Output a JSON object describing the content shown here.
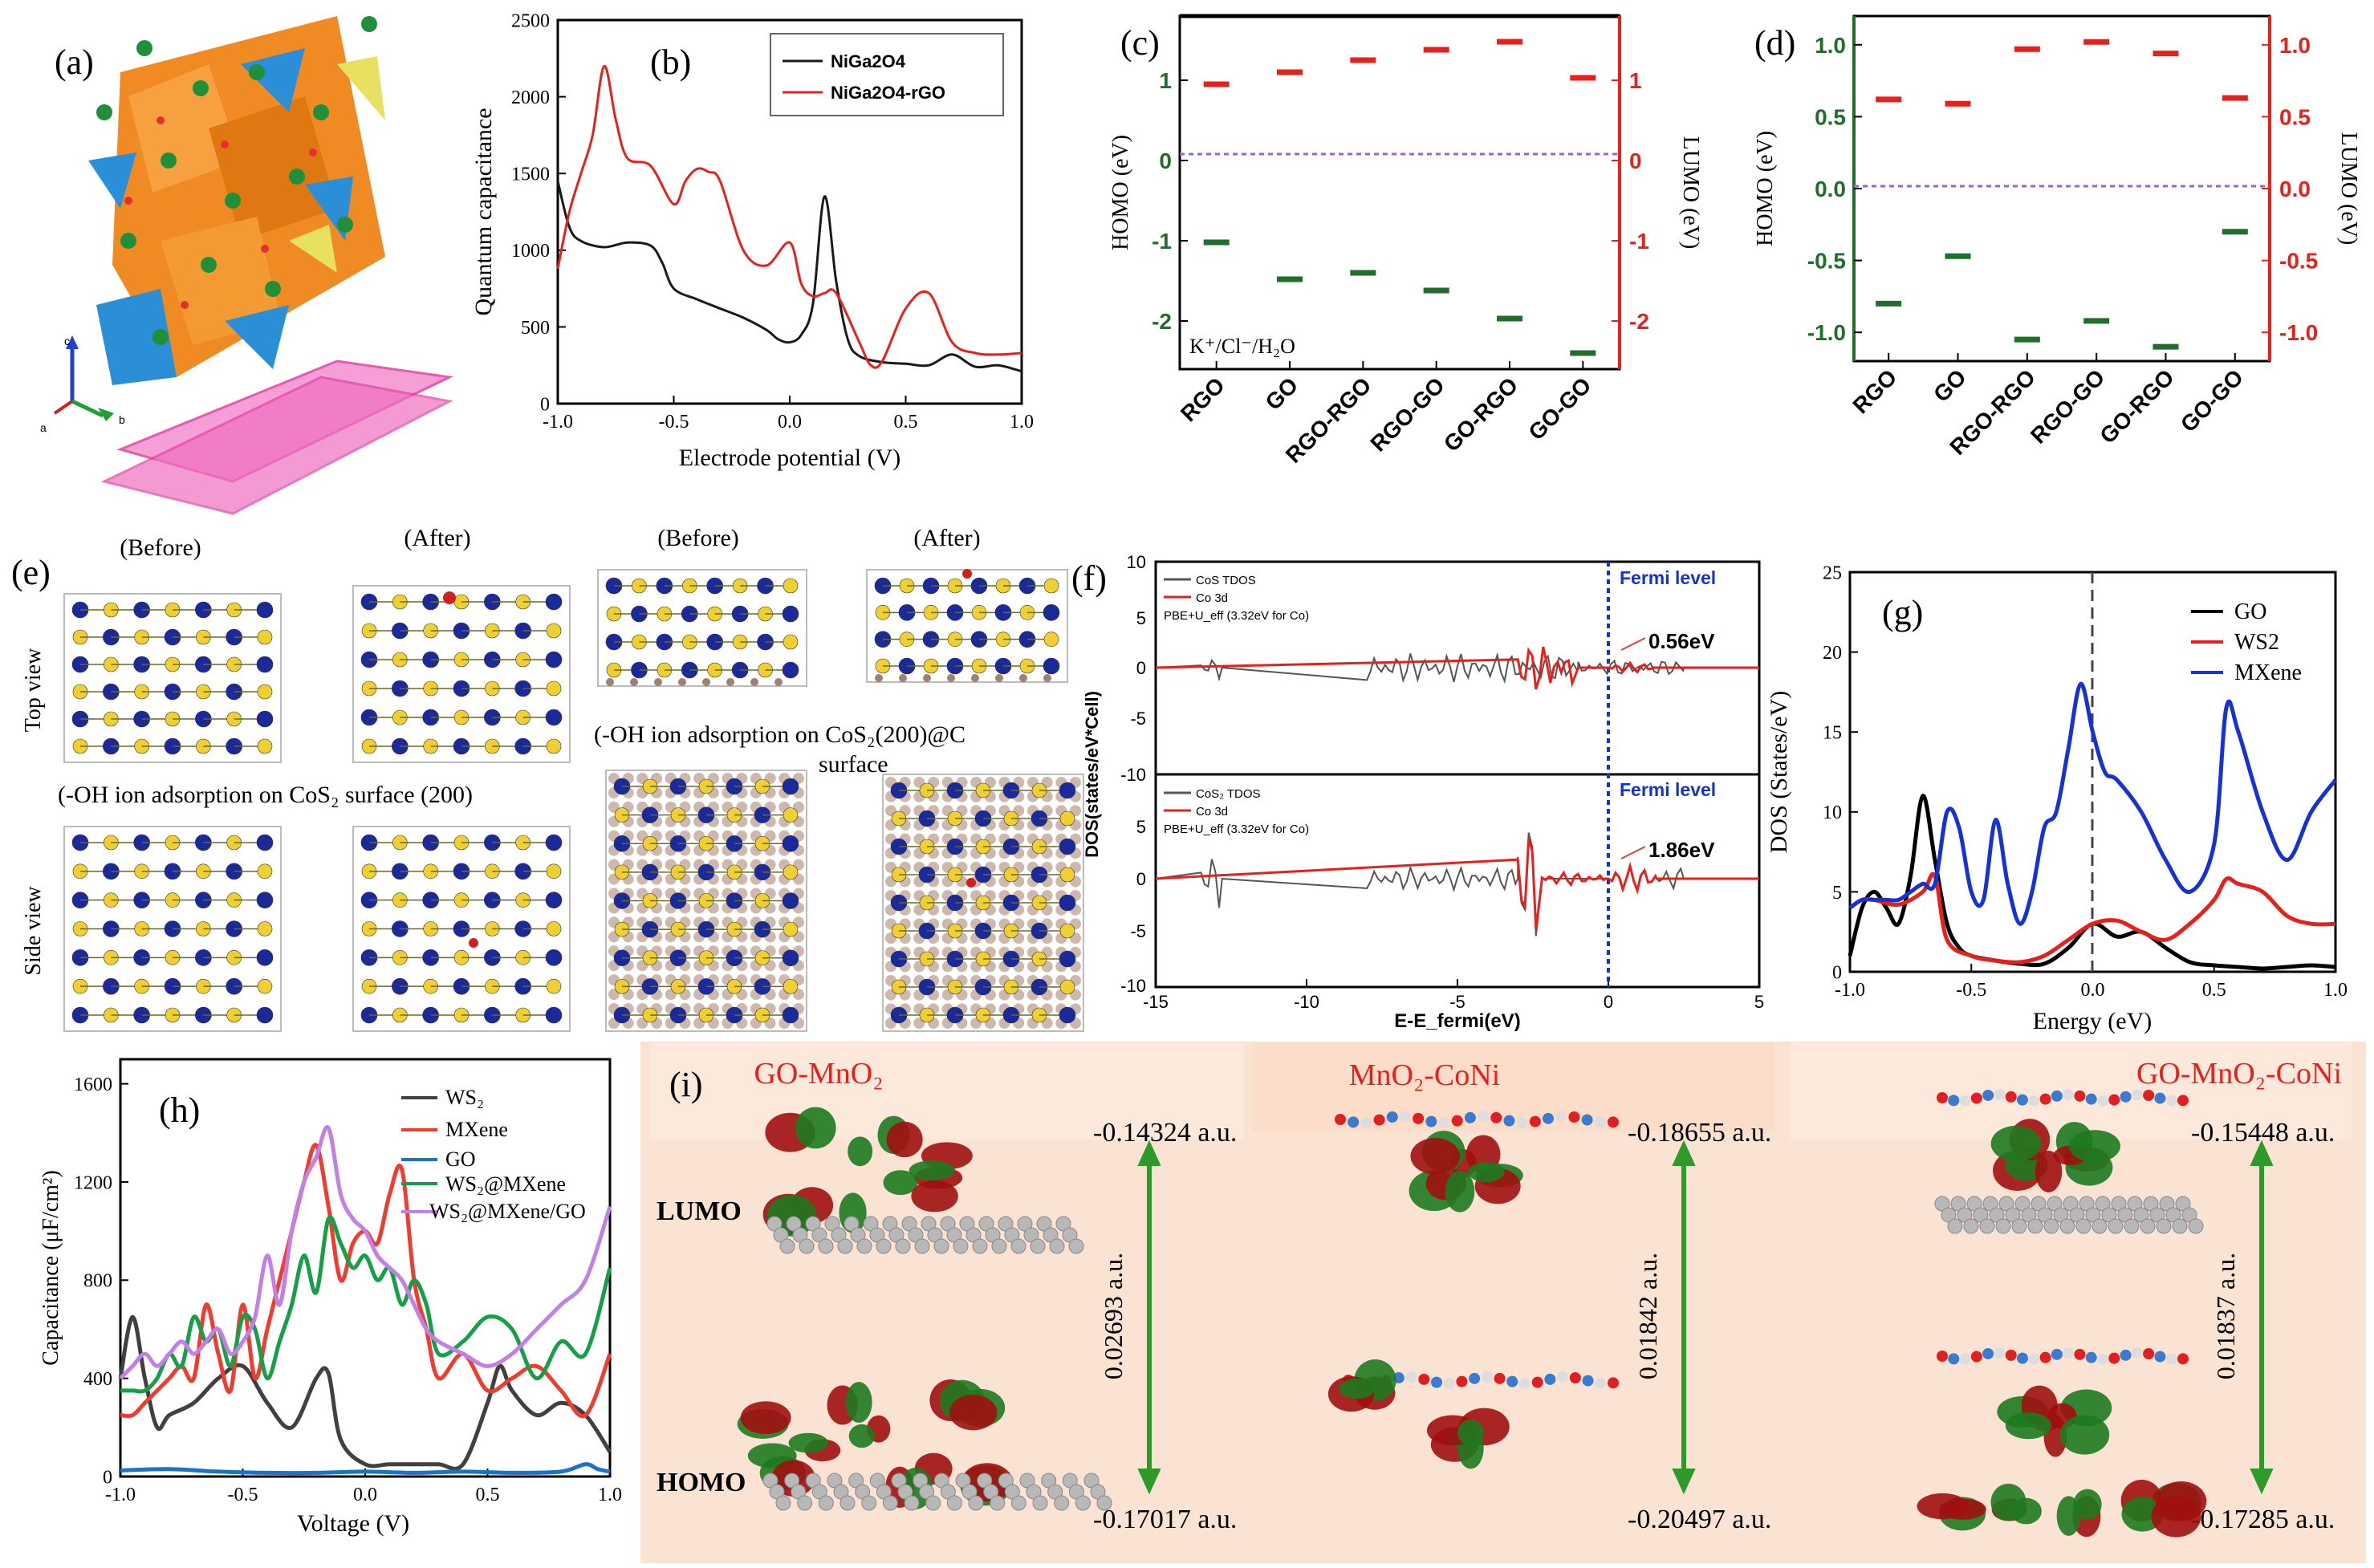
{
  "panel_labels": [
    "(a)",
    "(b)",
    "(c)",
    "(d)",
    "(e)",
    "(f)",
    "(g)",
    "(h)",
    "(i)"
  ],
  "panel_a": {
    "axes": [
      "c",
      "a",
      "b"
    ]
  },
  "chart_data": [
    {
      "panel": "(b)",
      "type": "line",
      "xlabel": "Electrode potential (V)",
      "ylabel": "Quantum capacitance",
      "xlim": [
        -1.0,
        1.0
      ],
      "ylim": [
        0,
        2500
      ],
      "xticks": [
        "-1.0",
        "-0.5",
        "0.0",
        "0.5",
        "1.0"
      ],
      "yticks": [
        "0",
        "500",
        "1000",
        "1500",
        "2000",
        "2500"
      ],
      "legend_position": "top-right",
      "series": [
        {
          "name": "NiGa2O4",
          "color": "#1a1a1a",
          "x": [
            -1.0,
            -0.95,
            -0.9,
            -0.8,
            -0.7,
            -0.6,
            -0.55,
            -0.5,
            -0.4,
            -0.3,
            -0.2,
            -0.1,
            -0.05,
            0.0,
            0.05,
            0.1,
            0.15,
            0.2,
            0.25,
            0.3,
            0.4,
            0.5,
            0.6,
            0.7,
            0.8,
            0.9,
            1.0
          ],
          "y": [
            1450,
            1150,
            1060,
            1020,
            1050,
            1030,
            920,
            750,
            680,
            620,
            560,
            480,
            420,
            400,
            450,
            650,
            1350,
            800,
            420,
            310,
            270,
            260,
            250,
            320,
            240,
            250,
            210
          ]
        },
        {
          "name": "NiGa2O4-rGO",
          "color": "#e8201c",
          "x": [
            -1.0,
            -0.95,
            -0.9,
            -0.85,
            -0.8,
            -0.75,
            -0.7,
            -0.6,
            -0.5,
            -0.45,
            -0.4,
            -0.35,
            -0.3,
            -0.2,
            -0.1,
            0.0,
            0.05,
            0.1,
            0.15,
            0.2,
            0.3,
            0.35,
            0.4,
            0.5,
            0.6,
            0.7,
            0.8,
            0.9,
            1.0
          ],
          "y": [
            880,
            1250,
            1500,
            1750,
            2200,
            1850,
            1600,
            1550,
            1300,
            1450,
            1530,
            1510,
            1450,
            1000,
            900,
            1050,
            780,
            700,
            720,
            720,
            400,
            250,
            280,
            620,
            720,
            400,
            330,
            320,
            330
          ]
        }
      ]
    },
    {
      "panel": "(c)",
      "type": "scatter",
      "ylabel": "HOMO (eV)",
      "y2label": "LUMO (eV)",
      "ylim": [
        -2.6,
        1.8
      ],
      "yticks": [
        "1",
        "0",
        "-1",
        "-2"
      ],
      "y2ticks": [
        "1",
        "0",
        "-1",
        "-2"
      ],
      "categories": [
        "RGO",
        "GO",
        "RGO-RGO",
        "RGO-GO",
        "GO-RGO",
        "GO-GO"
      ],
      "annotation": "K⁺/Cl⁻/H₂O",
      "series": [
        {
          "name": "LUMO",
          "color": "#e8201c",
          "values": [
            0.95,
            1.1,
            1.25,
            1.38,
            1.48,
            1.03
          ]
        },
        {
          "name": "HOMO",
          "color": "#1f6e2a",
          "values": [
            -1.02,
            -1.48,
            -1.4,
            -1.62,
            -1.97,
            -2.4
          ]
        }
      ]
    },
    {
      "panel": "(d)",
      "type": "scatter",
      "ylabel": "HOMO (eV)",
      "y2label": "LUMO (eV)",
      "ylim": [
        -1.2,
        1.2
      ],
      "yticks": [
        "1.0",
        "0.5",
        "0.0",
        "-0.5",
        "-1.0"
      ],
      "y2ticks": [
        "1.0",
        "0.5",
        "0.0",
        "-0.5",
        "-1.0"
      ],
      "categories": [
        "RGO",
        "GO",
        "RGO-RGO",
        "RGO-GO",
        "GO-RGO",
        "GO-GO"
      ],
      "series": [
        {
          "name": "LUMO",
          "color": "#e8201c",
          "values": [
            0.62,
            0.59,
            0.97,
            1.02,
            0.94,
            0.63
          ]
        },
        {
          "name": "HOMO",
          "color": "#1f6e2a",
          "values": [
            -0.8,
            -0.47,
            -1.05,
            -0.92,
            -1.1,
            -0.3
          ]
        }
      ]
    },
    {
      "panel": "(f)",
      "type": "line",
      "xlabel": "E-E_fermi(eV)",
      "ylabel": "DOS(states/eV*Cell)",
      "xlim": [
        -15,
        5
      ],
      "xticks": [
        "-15",
        "-10",
        "-5",
        "0",
        "5"
      ],
      "top_yticks": [
        "10",
        "5",
        "0",
        "-5"
      ],
      "bottom_yticks": [
        "-10",
        "10",
        "5",
        "0",
        "-5",
        "-10"
      ],
      "fermi_label": "Fermi level",
      "subplots": [
        {
          "legend": [
            "CoS TDOS",
            "Co 3d"
          ],
          "method": "PBE+U_eff (3.32eV for Co)",
          "gap_label": "0.56eV"
        },
        {
          "legend": [
            "CoS₂ TDOS",
            "Co 3d"
          ],
          "method": "PBE+U_eff (3.32eV for Co)",
          "gap_label": "1.86eV"
        }
      ]
    },
    {
      "panel": "(g)",
      "type": "line",
      "xlabel": "Energy  (eV)",
      "ylabel": "DOS (States/eV)",
      "xlim": [
        -1.0,
        1.0
      ],
      "ylim": [
        0,
        25
      ],
      "xticks": [
        "-1.0",
        "-0.5",
        "0.0",
        "0.5",
        "1.0"
      ],
      "yticks": [
        "0",
        "5",
        "10",
        "15",
        "20",
        "25"
      ],
      "legend_position": "top-right",
      "series": [
        {
          "name": "GO",
          "color": "#000000",
          "x": [
            -1.0,
            -0.95,
            -0.9,
            -0.85,
            -0.8,
            -0.75,
            -0.7,
            -0.65,
            -0.6,
            -0.55,
            -0.5,
            -0.4,
            -0.3,
            -0.2,
            -0.1,
            0.0,
            0.1,
            0.2,
            0.3,
            0.4,
            0.5,
            0.6,
            0.7,
            0.8,
            0.9,
            1.0
          ],
          "y": [
            1,
            4,
            5,
            4,
            3,
            6,
            11,
            7,
            3,
            1.5,
            1,
            0.7,
            0.5,
            0.5,
            1.5,
            3,
            2.2,
            2.5,
            1.5,
            0.6,
            0.4,
            0.3,
            0.2,
            0.3,
            0.4,
            0.3
          ]
        },
        {
          "name": "WS2",
          "color": "#e8201c",
          "x": [
            -1.0,
            -0.95,
            -0.9,
            -0.8,
            -0.7,
            -0.65,
            -0.6,
            -0.5,
            -0.4,
            -0.3,
            -0.2,
            -0.1,
            0.0,
            0.1,
            0.2,
            0.3,
            0.4,
            0.5,
            0.55,
            0.6,
            0.7,
            0.8,
            0.9,
            1.0
          ],
          "y": [
            4,
            4.5,
            4.5,
            4.2,
            5,
            6,
            2,
            1,
            0.7,
            0.6,
            1,
            2,
            3,
            3.2,
            2.5,
            2,
            3,
            4.5,
            5.8,
            5.5,
            5,
            3.5,
            3,
            3
          ]
        },
        {
          "name": "MXene",
          "color": "#1432d6",
          "x": [
            -1.0,
            -0.95,
            -0.9,
            -0.85,
            -0.8,
            -0.75,
            -0.7,
            -0.65,
            -0.6,
            -0.55,
            -0.5,
            -0.45,
            -0.4,
            -0.35,
            -0.3,
            -0.25,
            -0.2,
            -0.15,
            -0.1,
            -0.05,
            0.0,
            0.05,
            0.1,
            0.2,
            0.3,
            0.4,
            0.5,
            0.55,
            0.6,
            0.7,
            0.8,
            0.9,
            1.0
          ],
          "y": [
            4,
            4.5,
            4.5,
            4.5,
            4.5,
            5,
            5.5,
            5.5,
            10,
            9,
            5,
            4.5,
            9.5,
            5.5,
            3,
            5,
            9,
            10,
            14,
            18,
            15,
            12.5,
            12,
            10,
            7,
            5,
            8,
            16.5,
            15,
            10,
            7,
            10,
            12
          ]
        }
      ]
    },
    {
      "panel": "(h)",
      "type": "line",
      "xlabel": "Voltage  (V)",
      "ylabel": "Capacitance (μF/cm²)",
      "xlim": [
        -1.0,
        1.0
      ],
      "ylim": [
        0,
        1700
      ],
      "xticks": [
        "-1.0",
        "-0.5",
        "0.0",
        "0.5",
        "1.0"
      ],
      "yticks": [
        "0",
        "400",
        "800",
        "1200",
        "1600"
      ],
      "legend_position": "top-right",
      "series": [
        {
          "name": "WS₂",
          "color": "#404040",
          "x": [
            -1.0,
            -0.95,
            -0.9,
            -0.85,
            -0.8,
            -0.7,
            -0.6,
            -0.5,
            -0.4,
            -0.3,
            -0.2,
            -0.15,
            -0.1,
            0.0,
            0.1,
            0.2,
            0.3,
            0.4,
            0.5,
            0.55,
            0.6,
            0.7,
            0.8,
            0.9,
            1.0
          ],
          "y": [
            400,
            650,
            400,
            200,
            250,
            300,
            400,
            450,
            300,
            200,
            400,
            420,
            150,
            50,
            50,
            50,
            50,
            50,
            300,
            450,
            350,
            250,
            300,
            250,
            100
          ]
        },
        {
          "name": "MXene",
          "color": "#f03c2e",
          "x": [
            -1.0,
            -0.95,
            -0.9,
            -0.85,
            -0.8,
            -0.75,
            -0.7,
            -0.65,
            -0.6,
            -0.55,
            -0.5,
            -0.45,
            -0.4,
            -0.35,
            -0.3,
            -0.25,
            -0.2,
            -0.15,
            -0.1,
            -0.05,
            0.0,
            0.05,
            0.1,
            0.15,
            0.2,
            0.25,
            0.3,
            0.4,
            0.5,
            0.6,
            0.7,
            0.8,
            0.9,
            1.0
          ],
          "y": [
            250,
            250,
            300,
            350,
            400,
            450,
            400,
            700,
            500,
            350,
            700,
            400,
            600,
            800,
            1000,
            1200,
            1350,
            1100,
            800,
            950,
            1000,
            950,
            1150,
            1250,
            800,
            600,
            400,
            500,
            350,
            400,
            450,
            350,
            250,
            500
          ]
        },
        {
          "name": "GO",
          "color": "#1a73c8",
          "x": [
            -1.0,
            -0.8,
            -0.6,
            -0.4,
            -0.2,
            0.0,
            0.2,
            0.4,
            0.6,
            0.8,
            0.9,
            0.95,
            1.0
          ],
          "y": [
            25,
            30,
            20,
            15,
            15,
            20,
            15,
            20,
            15,
            20,
            50,
            30,
            20
          ]
        },
        {
          "name": "WS₂@MXene",
          "color": "#15a048",
          "x": [
            -1.0,
            -0.95,
            -0.9,
            -0.85,
            -0.8,
            -0.75,
            -0.7,
            -0.65,
            -0.6,
            -0.55,
            -0.5,
            -0.45,
            -0.4,
            -0.35,
            -0.3,
            -0.25,
            -0.2,
            -0.15,
            -0.1,
            -0.05,
            0.0,
            0.05,
            0.1,
            0.15,
            0.2,
            0.25,
            0.3,
            0.4,
            0.5,
            0.6,
            0.7,
            0.8,
            0.9,
            1.0
          ],
          "y": [
            350,
            350,
            350,
            400,
            500,
            450,
            650,
            550,
            600,
            450,
            650,
            600,
            400,
            550,
            700,
            900,
            750,
            1050,
            950,
            850,
            900,
            800,
            850,
            700,
            800,
            700,
            500,
            550,
            650,
            600,
            400,
            550,
            500,
            850
          ]
        },
        {
          "name": "WS₂@MXene/GO",
          "color": "#c47fe6",
          "x": [
            -1.0,
            -0.95,
            -0.9,
            -0.85,
            -0.8,
            -0.75,
            -0.7,
            -0.65,
            -0.6,
            -0.55,
            -0.5,
            -0.45,
            -0.4,
            -0.35,
            -0.3,
            -0.25,
            -0.2,
            -0.15,
            -0.1,
            -0.05,
            0.0,
            0.05,
            0.1,
            0.15,
            0.2,
            0.25,
            0.3,
            0.4,
            0.5,
            0.6,
            0.7,
            0.8,
            0.9,
            1.0
          ],
          "y": [
            400,
            450,
            500,
            450,
            500,
            550,
            500,
            550,
            600,
            500,
            550,
            650,
            900,
            700,
            1000,
            1200,
            1300,
            1420,
            1150,
            1050,
            1000,
            900,
            850,
            800,
            700,
            600,
            550,
            500,
            450,
            500,
            600,
            700,
            800,
            1100
          ]
        }
      ]
    }
  ],
  "panel_e": {
    "before": "(Before)",
    "after": "(After)",
    "top_view": "Top view",
    "side_view": "Side view",
    "caption1": "(-OH ion adsorption on CoS₂ surface (200)",
    "caption2_line1": "(-OH ion adsorption on CoS₂(200)@C",
    "caption2_line2": "surface"
  },
  "panel_i": {
    "titles": [
      "GO-MnO₂",
      "MnO₂-CoNi",
      "GO-MnO₂-CoNi"
    ],
    "lumo_label": "LUMO",
    "homo_label": "HOMO",
    "lumo_values": [
      "-0.14324 a.u.",
      "-0.18655 a.u.",
      "-0.15448 a.u."
    ],
    "homo_values": [
      "-0.17017 a.u.",
      "-0.20497 a.u.",
      "-0.17285 a.u."
    ],
    "gaps": [
      "0.02693 a.u.",
      "0.01842 a.u.",
      "0.01837 a.u."
    ],
    "background_color": "#fbe3d3",
    "title_color": "#e8201c"
  }
}
